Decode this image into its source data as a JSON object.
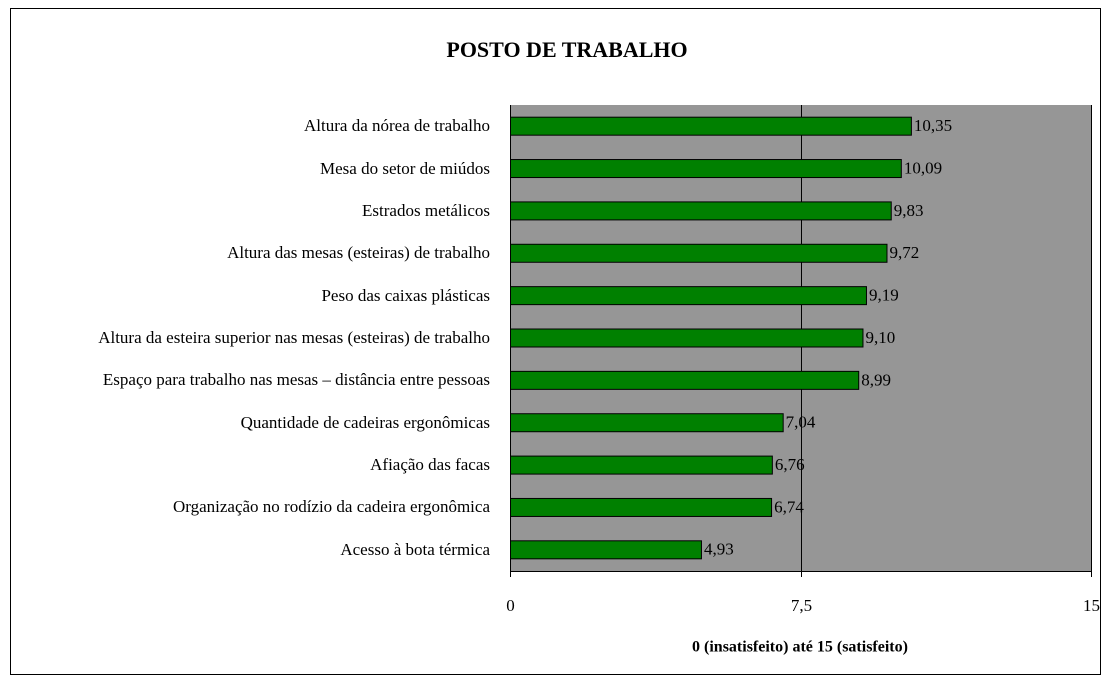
{
  "chart_data": {
    "type": "bar",
    "orientation": "horizontal",
    "title": "POSTO DE TRABALHO",
    "x_label": "0 (insatisfeito) até 15 (satisfeito)",
    "categories": [
      "Altura da nórea de trabalho",
      "Mesa do setor de miúdos",
      "Estrados metálicos",
      "Altura das mesas (esteiras) de trabalho",
      "Peso das caixas plásticas",
      "Altura da esteira superior nas mesas (esteiras) de trabalho",
      "Espaço para trabalho nas mesas – distância entre pessoas",
      "Quantidade de cadeiras ergonômicas",
      "Afiação das facas",
      "Organização no rodízio da cadeira ergonômica",
      "Acesso à bota térmica"
    ],
    "values": [
      10.35,
      10.09,
      9.83,
      9.72,
      9.19,
      9.1,
      8.99,
      7.04,
      6.76,
      6.74,
      4.93
    ],
    "value_labels": [
      "10,35",
      "10,09",
      "9,83",
      "9,72",
      "9,19",
      "9,10",
      "8,99",
      "7,04",
      "6,76",
      "6,74",
      "4,93"
    ],
    "color": "#008000",
    "xlim": [
      0,
      15
    ],
    "xticks": [
      0,
      {
        "value": 7.5,
        "label": "7,5"
      },
      15
    ],
    "grid": true,
    "plot_background": "#969696"
  }
}
